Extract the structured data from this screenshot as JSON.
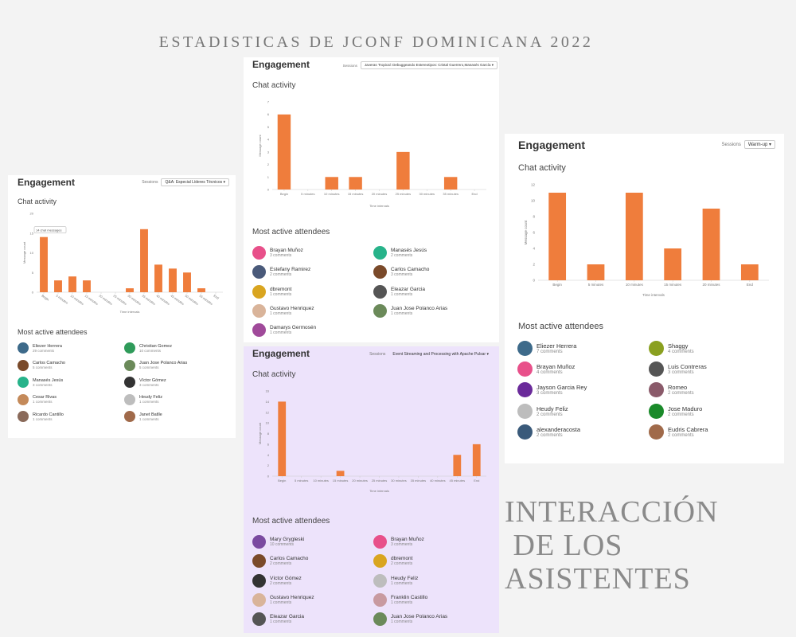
{
  "page_title": "ESTADISTICAS DE JCONF DOMINICANA 2022",
  "side_title": "INTERACCIÓN\n DE LOS\nASISTENTES",
  "accent_color": "#ef7d3c",
  "panels": [
    {
      "id": "left",
      "engagement": "Engagement",
      "sessions_label": "Sessions",
      "session_value": "Q&A: Especial Líderes Técnicos",
      "chat_title": "Chat activity",
      "attendees_title": "Most active attendees",
      "attendees": [
        {
          "name": "Eliezer Herrera",
          "count": "29 comments",
          "avatar": "#3d6a8a"
        },
        {
          "name": "Christian Gomez",
          "count": "10 comments",
          "avatar": "#2f9b5a"
        },
        {
          "name": "Carlos Camacho",
          "count": "5 comments",
          "avatar": "#7a4a2a"
        },
        {
          "name": "Juan Jose Polanco Arias",
          "count": "5 comments",
          "avatar": "#6b8a5a"
        },
        {
          "name": "Manasés Jesús",
          "count": "3 comments",
          "avatar": "#27b38a"
        },
        {
          "name": "Víctor Gómez",
          "count": "3 comments",
          "avatar": "#333333"
        },
        {
          "name": "Cesar Rivas",
          "count": "1 comments",
          "avatar": "#c48a5a"
        },
        {
          "name": "Heudy Feliz",
          "count": "1 comments",
          "avatar": "#bdbdbd"
        },
        {
          "name": "Ricardo Cantillo",
          "count": "1 comments",
          "avatar": "#8a6a5a"
        },
        {
          "name": "Janet Batlle",
          "count": "1 comments",
          "avatar": "#a06a4a"
        }
      ]
    },
    {
      "id": "top",
      "engagement": "Engagement",
      "sessions_label": "Sessions",
      "session_value": "Javeras Tropical: Debuggeando Estereotipos: Cristal Guerrero,Manasés García",
      "chat_title": "Chat activity",
      "attendees_title": "Most active attendees",
      "attendees": [
        {
          "name": "Brayan Muñoz",
          "count": "3 comments",
          "avatar": "#e8508a"
        },
        {
          "name": "Manasés Jesús",
          "count": "2 comments",
          "avatar": "#27b38a"
        },
        {
          "name": "Estefany Ramirez",
          "count": "2 comments",
          "avatar": "#4a5a7a"
        },
        {
          "name": "Carlos Camacho",
          "count": "3 comments",
          "avatar": "#7a4a2a"
        },
        {
          "name": "dbremont",
          "count": "1 comments",
          "avatar": "#d9a520"
        },
        {
          "name": "Eleazar Garcia",
          "count": "1 comments",
          "avatar": "#555555"
        },
        {
          "name": "Gustavo Henriquez",
          "count": "1 comments",
          "avatar": "#d9b49a"
        },
        {
          "name": "Juan Jose Polanco Arias",
          "count": "1 comments",
          "avatar": "#6b8a5a"
        },
        {
          "name": "Damarys Germosén",
          "count": "1 comments",
          "avatar": "#a04a9a"
        }
      ]
    },
    {
      "id": "bottom",
      "engagement": "Engagement",
      "sessions_label": "Sessions",
      "session_value": "Event Streaming and Processing with Apache Pulsar",
      "chat_title": "Chat activity",
      "attendees_title": "Most active attendees",
      "attendees": [
        {
          "name": "Mary Grygleski",
          "count": "10 comments",
          "avatar": "#7a4aa0"
        },
        {
          "name": "Brayan Muñoz",
          "count": "3 comments",
          "avatar": "#e8508a"
        },
        {
          "name": "Carlos Camacho",
          "count": "2 comments",
          "avatar": "#7a4a2a"
        },
        {
          "name": "dbremont",
          "count": "2 comments",
          "avatar": "#d9a520"
        },
        {
          "name": "Víctor Gómez",
          "count": "2 comments",
          "avatar": "#333333"
        },
        {
          "name": "Heudy Feliz",
          "count": "1 comments",
          "avatar": "#bdbdbd"
        },
        {
          "name": "Gustavo Henriquez",
          "count": "1 comments",
          "avatar": "#d9b49a"
        },
        {
          "name": "Franklin Castillo",
          "count": "1 comments",
          "avatar": "#c89aa0"
        },
        {
          "name": "Eleazar Garcia",
          "count": "1 comments",
          "avatar": "#555555"
        },
        {
          "name": "Juan Jose Polanco Arias",
          "count": "1 comments",
          "avatar": "#6b8a5a"
        }
      ]
    },
    {
      "id": "right",
      "engagement": "Engagement",
      "sessions_label": "Sessions",
      "session_value": "Warm-up",
      "chat_title": "Chat activity",
      "attendees_title": "Most active attendees",
      "attendees": [
        {
          "name": "Eliezer Herrera",
          "count": "7 comments",
          "avatar": "#3d6a8a"
        },
        {
          "name": "Shaggy",
          "count": "4 comments",
          "avatar": "#8aa020"
        },
        {
          "name": "Brayan Muñoz",
          "count": "4 comments",
          "avatar": "#e8508a"
        },
        {
          "name": "Luis Contreras",
          "count": "3 comments",
          "avatar": "#555555"
        },
        {
          "name": "Jayson Garcia Rey",
          "count": "3 comments",
          "avatar": "#6a2a9a"
        },
        {
          "name": "Romeo",
          "count": "2 comments",
          "avatar": "#8a5a6a"
        },
        {
          "name": "Heudy Feliz",
          "count": "2 comments",
          "avatar": "#bdbdbd"
        },
        {
          "name": "Jose Maduro",
          "count": "2 comments",
          "avatar": "#1a8a2a"
        },
        {
          "name": "alexanderacosta",
          "count": "2 comments",
          "avatar": "#3a5a7a"
        },
        {
          "name": "Eudris Cabrera",
          "count": "2 comments",
          "avatar": "#a06a4a"
        }
      ]
    }
  ],
  "chart_data": [
    {
      "panel": "left",
      "type": "bar",
      "categories": [
        "Begin",
        "5 minutes",
        "10 minutes",
        "15 minutes",
        "20 minutes",
        "25 minutes",
        "30 minutes",
        "35 minutes",
        "40 minutes",
        "45 minutes",
        "50 minutes",
        "55 minutes",
        "End"
      ],
      "values": [
        14,
        3,
        4,
        3,
        0,
        0,
        1,
        16,
        7,
        6,
        5,
        1,
        0
      ],
      "ylim": [
        0,
        20
      ],
      "yticks": [
        0,
        5,
        10,
        15,
        20
      ],
      "xlabel": "Time intervals",
      "ylabel": "Message count",
      "tooltip": "14 chat messages",
      "grid": false
    },
    {
      "panel": "top",
      "type": "bar",
      "categories": [
        "Begin",
        "5 minutes",
        "10 minutes",
        "15 minutes",
        "20 minutes",
        "25 minutes",
        "30 minutes",
        "35 minutes",
        "End"
      ],
      "values": [
        6,
        0,
        1,
        1,
        0,
        3,
        0,
        1,
        0
      ],
      "ylim": [
        0,
        7
      ],
      "yticks": [
        0,
        1,
        2,
        3,
        4,
        5,
        6,
        7
      ],
      "xlabel": "Time intervals",
      "ylabel": "Message count",
      "grid": false
    },
    {
      "panel": "bottom",
      "type": "bar",
      "categories": [
        "Begin",
        "5 minutes",
        "10 minutes",
        "15 minutes",
        "20 minutes",
        "25 minutes",
        "30 minutes",
        "35 minutes",
        "40 minutes",
        "45 minutes",
        "End"
      ],
      "values": [
        14,
        0,
        0,
        1,
        0,
        0,
        0,
        0,
        0,
        4,
        6
      ],
      "ylim": [
        0,
        16
      ],
      "yticks": [
        0,
        2,
        4,
        6,
        8,
        10,
        12,
        14,
        16
      ],
      "xlabel": "Time intervals",
      "ylabel": "Message count",
      "grid": false
    },
    {
      "panel": "right",
      "type": "bar",
      "categories": [
        "Begin",
        "5 minutes",
        "10 minutes",
        "15 minutes",
        "20 minutes",
        "End"
      ],
      "values": [
        11,
        2,
        11,
        4,
        9,
        2
      ],
      "ylim": [
        0,
        12
      ],
      "yticks": [
        0,
        2,
        4,
        6,
        8,
        10,
        12
      ],
      "xlabel": "Time intervals",
      "ylabel": "Message count",
      "grid": false
    }
  ]
}
